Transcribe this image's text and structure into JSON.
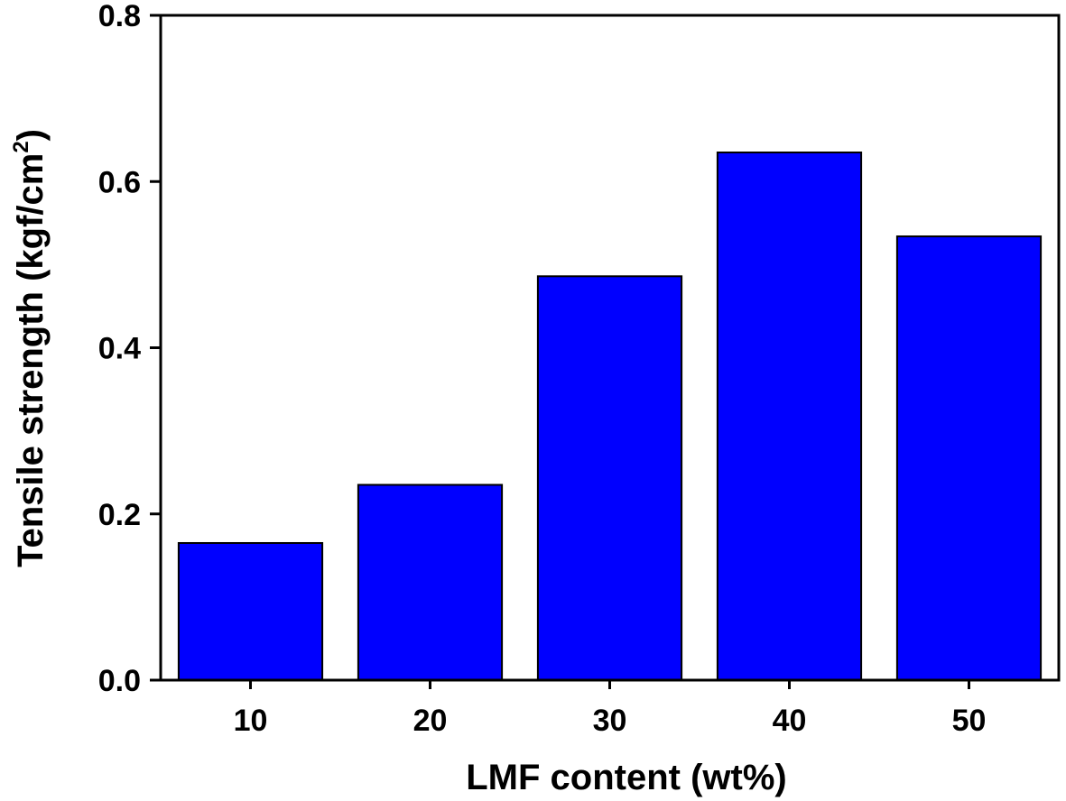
{
  "chart_data": {
    "type": "bar",
    "categories": [
      "10",
      "20",
      "30",
      "40",
      "50"
    ],
    "values": [
      0.165,
      0.235,
      0.486,
      0.635,
      0.534
    ],
    "xlabel": "LMF content (wt%)",
    "ylabel_main": "Tensile strength (kgf/cm",
    "ylabel_sup": "2",
    "ylabel_end": ")",
    "ylim": [
      0,
      0.8
    ],
    "yticks": [
      "0.0",
      "0.2",
      "0.4",
      "0.6",
      "0.8"
    ],
    "ytick_values": [
      0,
      0.2,
      0.4,
      0.6,
      0.8
    ],
    "bar_color": "#0000ff",
    "bar_edge_color": "#000000",
    "grid": false,
    "legend": "none"
  }
}
